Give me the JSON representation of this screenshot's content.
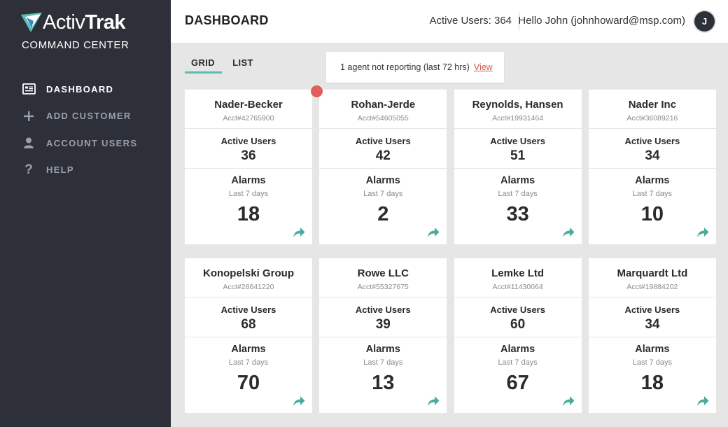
{
  "brand": {
    "name_light": "Activ",
    "name_bold": "Trak",
    "subtitle": "COMMAND CENTER"
  },
  "sidebar": {
    "items": [
      {
        "label": "DASHBOARD",
        "icon": "dashboard-icon",
        "active": true
      },
      {
        "label": "ADD CUSTOMER",
        "icon": "plus-icon",
        "active": false
      },
      {
        "label": "ACCOUNT USERS",
        "icon": "user-icon",
        "active": false
      },
      {
        "label": "HELP",
        "icon": "question-icon",
        "active": false
      }
    ]
  },
  "header": {
    "title": "DASHBOARD",
    "active_users": "Active Users: 364",
    "greeting": "Hello John (johnhoward@msp.com)",
    "avatar_initial": "J"
  },
  "tabs": [
    {
      "label": "GRID",
      "active": true
    },
    {
      "label": "LIST",
      "active": false
    }
  ],
  "notice": {
    "text": "1 agent not reporting (last 72 hrs)",
    "link": "View"
  },
  "card_labels": {
    "active_users": "Active Users",
    "alarms": "Alarms",
    "period": "Last 7 days"
  },
  "customers": [
    {
      "name": "Nader-Becker",
      "acct": "Acct#42765900",
      "active_users": "36",
      "alarms": "18",
      "alert": false
    },
    {
      "name": "Rohan-Jerde",
      "acct": "Acct#54605055",
      "active_users": "42",
      "alarms": "2",
      "alert": true
    },
    {
      "name": "Reynolds, Hansen",
      "acct": "Acct#19931464",
      "active_users": "51",
      "alarms": "33",
      "alert": false
    },
    {
      "name": "Nader Inc",
      "acct": "Acct#36089216",
      "active_users": "34",
      "alarms": "10",
      "alert": false
    },
    {
      "name": "Konopelski Group",
      "acct": "Acct#28641220",
      "active_users": "68",
      "alarms": "70",
      "alert": false
    },
    {
      "name": "Rowe LLC",
      "acct": "Acct#55327675",
      "active_users": "39",
      "alarms": "13",
      "alert": false
    },
    {
      "name": "Lemke Ltd",
      "acct": "Acct#11430064",
      "active_users": "60",
      "alarms": "67",
      "alert": false
    },
    {
      "name": "Marquardt Ltd",
      "acct": "Acct#19884202",
      "active_users": "34",
      "alarms": "18",
      "alert": false
    }
  ],
  "colors": {
    "sidebar": "#2d3039",
    "accent": "#5bbfb0",
    "alert": "#e35d5b",
    "link": "#d9534f"
  }
}
